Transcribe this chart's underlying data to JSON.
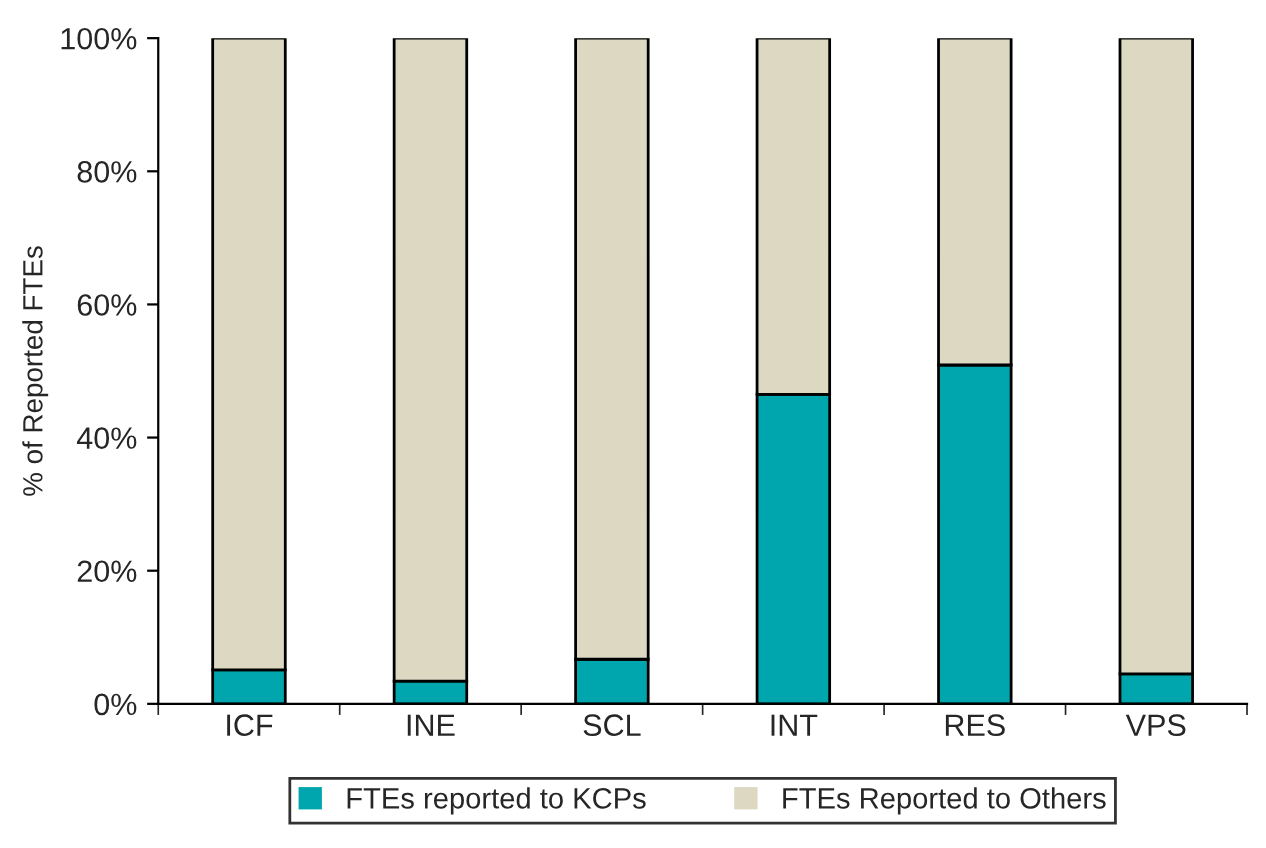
{
  "chart_data": {
    "type": "bar",
    "stacked": true,
    "ylabel": "% of Reported FTEs",
    "categories": [
      "ICF",
      "INE",
      "SCL",
      "INT",
      "RES",
      "VPS"
    ],
    "series": [
      {
        "name": "FTEs reported to KCPs",
        "color": "#00a6ad",
        "values": [
          5.1,
          3.4,
          6.7,
          46.5,
          50.9,
          4.5
        ]
      },
      {
        "name": "FTEs Reported to Others",
        "color": "#ddd8c2",
        "values": [
          94.9,
          96.6,
          93.3,
          53.5,
          49.1,
          95.5
        ]
      }
    ],
    "ylim": [
      0,
      100
    ],
    "yticks": [
      {
        "value": 0,
        "label": "0%"
      },
      {
        "value": 20,
        "label": "20%"
      },
      {
        "value": 40,
        "label": "40%"
      },
      {
        "value": 60,
        "label": "60%"
      },
      {
        "value": 80,
        "label": "80%"
      },
      {
        "value": 100,
        "label": "100%"
      }
    ],
    "grid": false,
    "legend": "bottom"
  }
}
